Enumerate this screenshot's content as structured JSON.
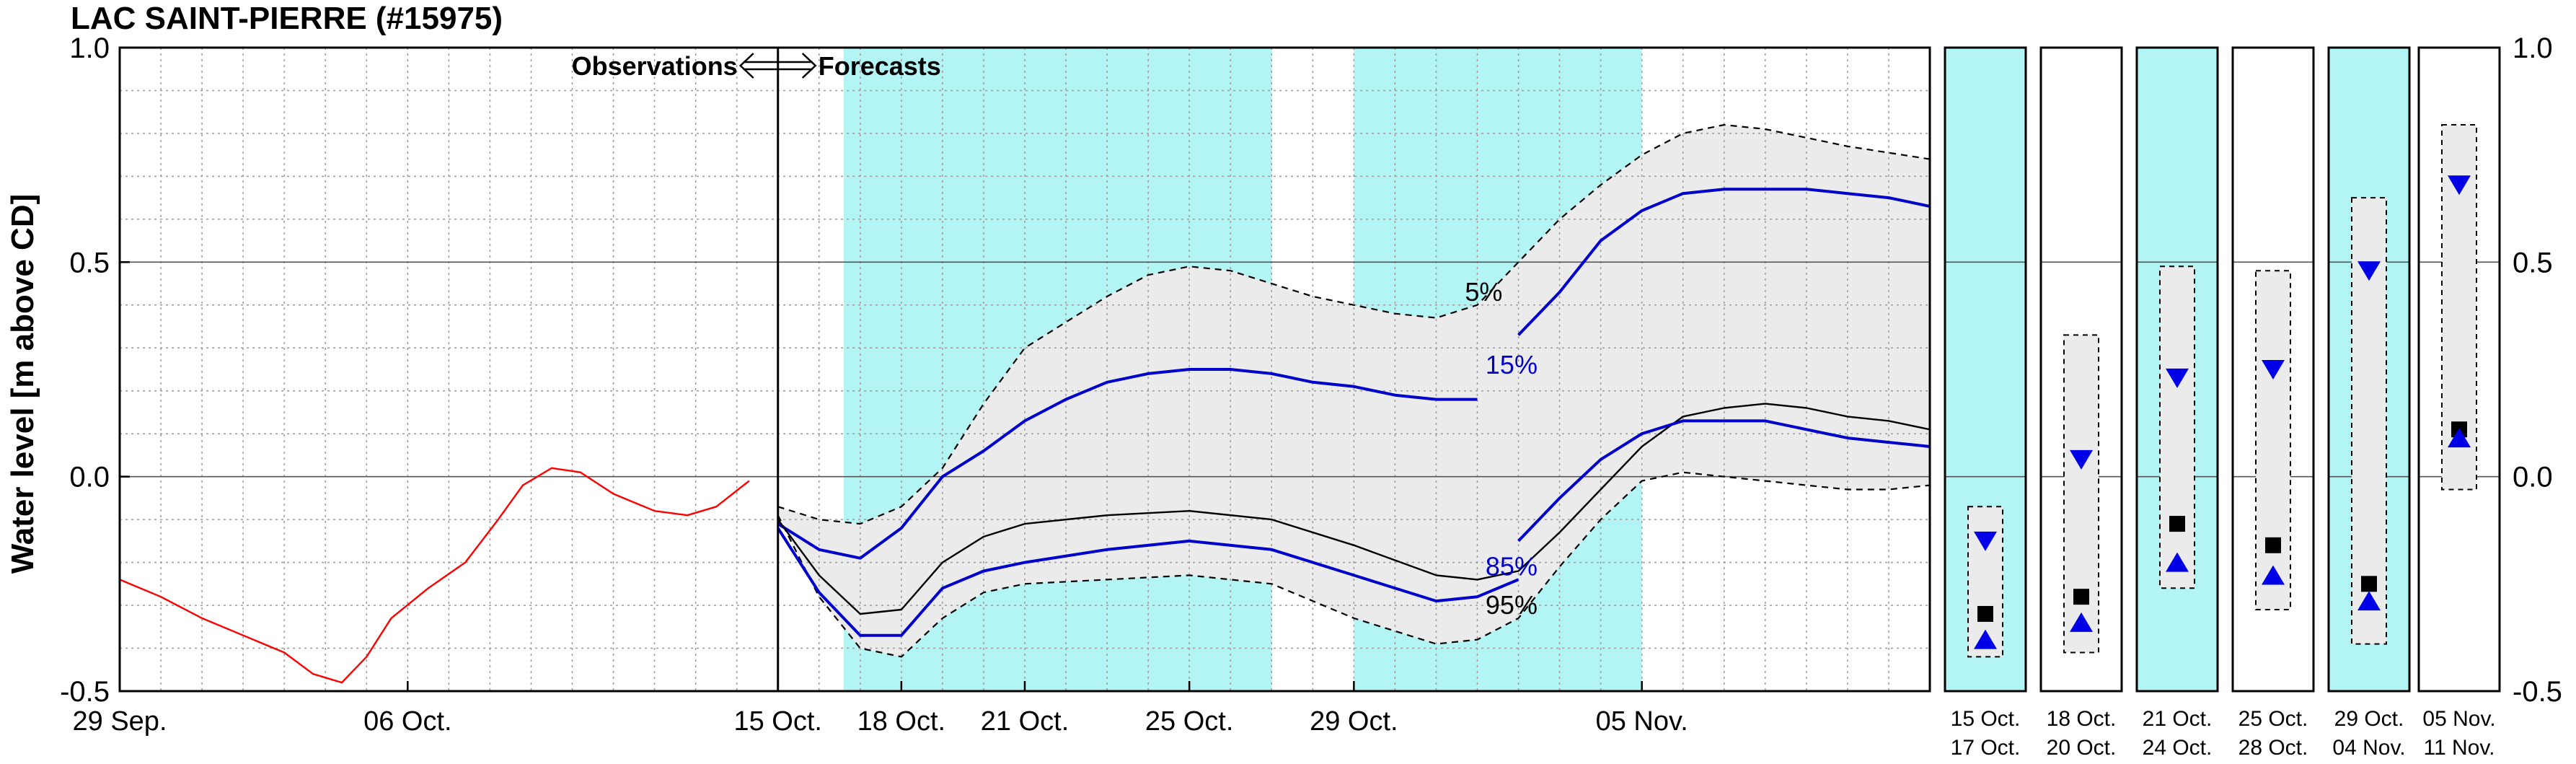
{
  "chart_data": {
    "type": "line",
    "title": "LAC SAINT-PIERRE (#15975)",
    "ylabel": "Water level [m above CD]",
    "ylim": [
      -0.5,
      1.0
    ],
    "yticks": [
      1.0,
      0.5,
      0.0,
      -0.5
    ],
    "ytick_labels": [
      "1.0",
      "0.5",
      "0.0",
      "-0.5"
    ],
    "x_start": "2023-09-29",
    "x_end": "2023-11-12",
    "boundary_date": "2023-10-15",
    "annotation": "Observations ⇐⇒ Forecasts",
    "annotation_left": "Observations",
    "annotation_right": "Forecasts",
    "xtick_labels": [
      {
        "date": "2023-09-29",
        "label": "29 Sep."
      },
      {
        "date": "2023-10-06",
        "label": "06 Oct."
      },
      {
        "date": "2023-10-15",
        "label": "15 Oct."
      },
      {
        "date": "2023-10-18",
        "label": "18 Oct."
      },
      {
        "date": "2023-10-21",
        "label": "21 Oct."
      },
      {
        "date": "2023-10-25",
        "label": "25 Oct."
      },
      {
        "date": "2023-10-29",
        "label": "29 Oct."
      },
      {
        "date": "2023-11-05",
        "label": "05 Nov."
      }
    ],
    "shaded_periods": [
      [
        "2023-10-16.6",
        "2023-10-21"
      ],
      [
        "2023-10-21",
        "2023-10-27"
      ],
      [
        "2023-10-29",
        "2023-11-05"
      ]
    ],
    "shaded_color": "#b3f5f5",
    "series": [
      {
        "color": "#ff0000",
        "points": [
          [
            "2023-09-29",
            -0.24
          ],
          [
            "2023-09-30",
            -0.28
          ],
          [
            "2023-10-01",
            -0.33
          ],
          [
            "2023-10-02",
            -0.37
          ],
          [
            "2023-10-03",
            -0.41
          ],
          [
            "2023-10-03.7",
            -0.46
          ],
          [
            "2023-10-04.4",
            -0.48
          ],
          [
            "2023-10-05",
            -0.42
          ],
          [
            "2023-10-05.6",
            -0.33
          ],
          [
            "2023-10-06.5",
            -0.26
          ],
          [
            "2023-10-07.4",
            -0.2
          ],
          [
            "2023-10-08.2",
            -0.1
          ],
          [
            "2023-10-08.8",
            -0.02
          ],
          [
            "2023-10-09.5",
            0.02
          ],
          [
            "2023-10-10.2",
            0.01
          ],
          [
            "2023-10-11",
            -0.04
          ],
          [
            "2023-10-12",
            -0.08
          ],
          [
            "2023-10-12.8",
            -0.09
          ],
          [
            "2023-10-13.5",
            -0.07
          ],
          [
            "2023-10-14.3",
            -0.01
          ]
        ]
      },
      {
        "color": "#000000",
        "dashed": true,
        "points": [
          [
            "2023-10-15",
            -0.07
          ],
          [
            "2023-10-16",
            -0.1
          ],
          [
            "2023-10-17",
            -0.11
          ],
          [
            "2023-10-18",
            -0.07
          ],
          [
            "2023-10-19",
            0.02
          ],
          [
            "2023-10-20",
            0.17
          ],
          [
            "2023-10-21",
            0.3
          ],
          [
            "2023-10-22",
            0.36
          ],
          [
            "2023-10-23",
            0.42
          ],
          [
            "2023-10-24",
            0.47
          ],
          [
            "2023-10-25",
            0.49
          ],
          [
            "2023-10-26",
            0.48
          ],
          [
            "2023-10-27",
            0.45
          ],
          [
            "2023-10-28",
            0.42
          ],
          [
            "2023-10-29",
            0.4
          ],
          [
            "2023-10-30",
            0.38
          ],
          [
            "2023-10-31",
            0.37
          ],
          [
            "2023-11-01",
            0.4
          ],
          [
            "2023-11-02",
            0.5
          ],
          [
            "2023-11-03",
            0.6
          ],
          [
            "2023-11-04",
            0.68
          ],
          [
            "2023-11-05",
            0.75
          ],
          [
            "2023-11-06",
            0.8
          ],
          [
            "2023-11-07",
            0.82
          ],
          [
            "2023-11-08",
            0.81
          ],
          [
            "2023-11-09",
            0.79
          ],
          [
            "2023-11-10",
            0.77
          ],
          [
            "2023-11-12",
            0.74
          ]
        ]
      },
      {
        "color": "#000000",
        "dashed": true,
        "points": [
          [
            "2023-10-15",
            -0.09
          ],
          [
            "2023-10-16",
            -0.28
          ],
          [
            "2023-10-17",
            -0.4
          ],
          [
            "2023-10-18",
            -0.42
          ],
          [
            "2023-10-19",
            -0.33
          ],
          [
            "2023-10-20",
            -0.27
          ],
          [
            "2023-10-21",
            -0.25
          ],
          [
            "2023-10-23",
            -0.24
          ],
          [
            "2023-10-25",
            -0.23
          ],
          [
            "2023-10-27",
            -0.25
          ],
          [
            "2023-10-29",
            -0.33
          ],
          [
            "2023-10-31",
            -0.39
          ],
          [
            "2023-11-01",
            -0.38
          ],
          [
            "2023-11-02",
            -0.33
          ],
          [
            "2023-11-03",
            -0.21
          ],
          [
            "2023-11-04",
            -0.1
          ],
          [
            "2023-11-05",
            -0.01
          ],
          [
            "2023-11-06",
            0.01
          ],
          [
            "2023-11-07",
            0.0
          ],
          [
            "2023-11-08",
            -0.01
          ],
          [
            "2023-11-09",
            -0.02
          ],
          [
            "2023-11-10",
            -0.03
          ],
          [
            "2023-11-11",
            -0.03
          ],
          [
            "2023-11-12",
            -0.02
          ]
        ]
      },
      {
        "color": "#0000cc",
        "label": "15%",
        "points": [
          [
            "2023-10-15",
            -0.11
          ],
          [
            "2023-10-16",
            -0.17
          ],
          [
            "2023-10-17",
            -0.19
          ],
          [
            "2023-10-18",
            -0.12
          ],
          [
            "2023-10-19",
            0.0
          ],
          [
            "2023-10-20",
            0.06
          ],
          [
            "2023-10-21",
            0.13
          ],
          [
            "2023-10-22",
            0.18
          ],
          [
            "2023-10-23",
            0.22
          ],
          [
            "2023-10-24",
            0.24
          ],
          [
            "2023-10-25",
            0.25
          ],
          [
            "2023-10-26",
            0.25
          ],
          [
            "2023-10-27",
            0.24
          ],
          [
            "2023-10-28",
            0.22
          ],
          [
            "2023-10-29",
            0.21
          ],
          [
            "2023-10-30",
            0.19
          ],
          [
            "2023-10-31",
            0.18
          ],
          [
            "2023-11-01",
            0.18
          ]
        ]
      },
      {
        "color": "#0000cc",
        "label": "5%",
        "label_color": "#000000",
        "points": [
          [
            "2023-11-02",
            0.33
          ],
          [
            "2023-11-03",
            0.43
          ],
          [
            "2023-11-04",
            0.55
          ],
          [
            "2023-11-05",
            0.62
          ],
          [
            "2023-11-06",
            0.66
          ],
          [
            "2023-11-07",
            0.67
          ],
          [
            "2023-11-08",
            0.67
          ],
          [
            "2023-11-09",
            0.67
          ],
          [
            "2023-11-10",
            0.66
          ],
          [
            "2023-11-11",
            0.65
          ],
          [
            "2023-11-12",
            0.63
          ]
        ]
      },
      {
        "color": "#000000",
        "points": [
          [
            "2023-10-15",
            -0.1
          ],
          [
            "2023-10-16",
            -0.23
          ],
          [
            "2023-10-17",
            -0.32
          ],
          [
            "2023-10-18",
            -0.31
          ],
          [
            "2023-10-19",
            -0.2
          ],
          [
            "2023-10-20",
            -0.14
          ],
          [
            "2023-10-21",
            -0.11
          ],
          [
            "2023-10-23",
            -0.09
          ],
          [
            "2023-10-25",
            -0.08
          ],
          [
            "2023-10-27",
            -0.1
          ],
          [
            "2023-10-29",
            -0.16
          ],
          [
            "2023-10-31",
            -0.23
          ],
          [
            "2023-11-01",
            -0.24
          ],
          [
            "2023-11-02",
            -0.22
          ],
          [
            "2023-11-03",
            -0.13
          ],
          [
            "2023-11-04",
            -0.03
          ],
          [
            "2023-11-05",
            0.07
          ],
          [
            "2023-11-06",
            0.14
          ],
          [
            "2023-11-07",
            0.16
          ],
          [
            "2023-11-08",
            0.17
          ],
          [
            "2023-11-09",
            0.16
          ],
          [
            "2023-11-10",
            0.14
          ],
          [
            "2023-11-11",
            0.13
          ],
          [
            "2023-11-12",
            0.11
          ]
        ]
      },
      {
        "color": "#0000cc",
        "label": "85%",
        "points": [
          [
            "2023-10-15",
            -0.12
          ],
          [
            "2023-10-16",
            -0.27
          ],
          [
            "2023-10-17",
            -0.37
          ],
          [
            "2023-10-18",
            -0.37
          ],
          [
            "2023-10-19",
            -0.26
          ],
          [
            "2023-10-20",
            -0.22
          ],
          [
            "2023-10-21",
            -0.2
          ],
          [
            "2023-10-23",
            -0.17
          ],
          [
            "2023-10-25",
            -0.15
          ],
          [
            "2023-10-27",
            -0.17
          ],
          [
            "2023-10-29",
            -0.23
          ],
          [
            "2023-10-31",
            -0.29
          ],
          [
            "2023-11-01",
            -0.28
          ],
          [
            "2023-11-02",
            -0.24
          ]
        ]
      },
      {
        "color": "#0000cc",
        "label": "95%",
        "label_color": "#000000",
        "points": [
          [
            "2023-11-02",
            -0.15
          ],
          [
            "2023-11-03",
            -0.05
          ],
          [
            "2023-11-04",
            0.04
          ],
          [
            "2023-11-05",
            0.1
          ],
          [
            "2023-11-06",
            0.13
          ],
          [
            "2023-11-07",
            0.13
          ],
          [
            "2023-11-08",
            0.13
          ],
          [
            "2023-11-09",
            0.11
          ],
          [
            "2023-11-10",
            0.09
          ],
          [
            "2023-11-11",
            0.08
          ],
          [
            "2023-11-12",
            0.07
          ]
        ]
      }
    ],
    "label_positions": [
      {
        "label": "5%",
        "color": "#000000",
        "x": "2023-10-31.7",
        "y": 0.41
      },
      {
        "label": "15%",
        "color": "#0000cc",
        "x": "2023-11-01.2",
        "y": 0.24
      },
      {
        "label": "85%",
        "color": "#0000cc",
        "x": "2023-11-01.2",
        "y": -0.23
      },
      {
        "label": "95%",
        "color": "#000000",
        "x": "2023-11-01.2",
        "y": -0.32
      }
    ],
    "panels": [
      {
        "label_top": "15 Oct.",
        "label_bottom": "17 Oct.",
        "shaded": true,
        "box": [
          -0.42,
          -0.07
        ],
        "square": -0.32,
        "tri_down": -0.15,
        "tri_up": -0.38
      },
      {
        "label_top": "18 Oct.",
        "label_bottom": "20 Oct.",
        "shaded": false,
        "box": [
          -0.41,
          0.33
        ],
        "square": -0.28,
        "tri_down": 0.04,
        "tri_up": -0.34
      },
      {
        "label_top": "21 Oct.",
        "label_bottom": "24 Oct.",
        "shaded": true,
        "box": [
          -0.26,
          0.49
        ],
        "square": -0.11,
        "tri_down": 0.23,
        "tri_up": -0.2
      },
      {
        "label_top": "25 Oct.",
        "label_bottom": "28 Oct.",
        "shaded": false,
        "box": [
          -0.31,
          0.48
        ],
        "square": -0.16,
        "tri_down": 0.25,
        "tri_up": -0.23
      },
      {
        "label_top": "29 Oct.",
        "label_bottom": "04 Nov.",
        "shaded": true,
        "box": [
          -0.39,
          0.65
        ],
        "square": -0.25,
        "tri_down": 0.48,
        "tri_up": -0.29
      },
      {
        "label_top": "05 Nov.",
        "label_bottom": "11 Nov.",
        "shaded": false,
        "box": [
          -0.03,
          0.82
        ],
        "square": 0.11,
        "tri_down": 0.68,
        "tri_up": 0.09
      }
    ],
    "panel_ytick_labels": [
      "1.0",
      "0.5",
      "0.0",
      "-0.5"
    ],
    "band_fill": "#ebebeb",
    "grid": true
  }
}
